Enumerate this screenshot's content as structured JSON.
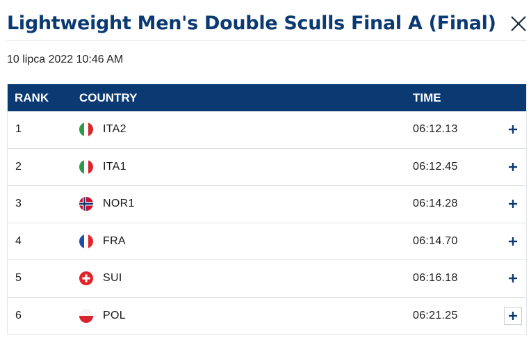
{
  "header": {
    "title": "Lightweight Men's Double Sculls Final A (Final)",
    "close_icon": "close-icon",
    "timestamp": "10 lipca 2022 10:46 AM"
  },
  "table": {
    "columns": {
      "rank": "RANK",
      "country": "COUNTRY",
      "time": "TIME"
    },
    "rows": [
      {
        "rank": "1",
        "flag": "italy-flag-icon",
        "country": "ITA2",
        "time": "06:12.13"
      },
      {
        "rank": "2",
        "flag": "italy-flag-icon",
        "country": "ITA1",
        "time": "06:12.45"
      },
      {
        "rank": "3",
        "flag": "norway-flag-icon",
        "country": "NOR1",
        "time": "06:14.28"
      },
      {
        "rank": "4",
        "flag": "france-flag-icon",
        "country": "FRA",
        "time": "06:14.70"
      },
      {
        "rank": "5",
        "flag": "switzerland-flag-icon",
        "country": "SUI",
        "time": "06:16.18"
      },
      {
        "rank": "6",
        "flag": "poland-flag-icon",
        "country": "POL",
        "time": "06:21.25"
      }
    ],
    "expand_icon": "plus-icon"
  },
  "colors": {
    "brand_navy": "#0b3a73",
    "header_text": "#ffffff",
    "row_border": "#dde1e6"
  }
}
